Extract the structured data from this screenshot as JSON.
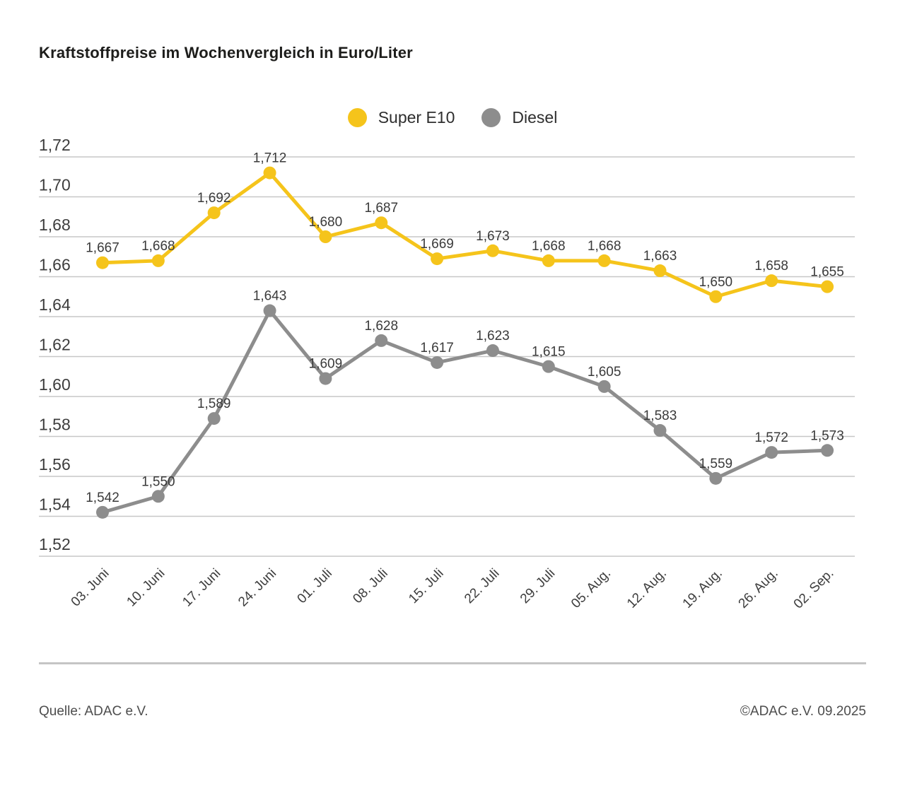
{
  "title": "Kraftstoffpreise im Wochenvergleich in Euro/Liter",
  "legend": [
    {
      "label": "Super E10",
      "color": "#F5C41B"
    },
    {
      "label": "Diesel",
      "color": "#8D8D8D"
    }
  ],
  "footer": {
    "source": "Quelle: ADAC e.V.",
    "copyright": "©ADAC e.V. 09.2025"
  },
  "chart_data": {
    "type": "line",
    "title": "Kraftstoffpreise im Wochenvergleich in Euro/Liter",
    "xlabel": "",
    "ylabel": "Euro/Liter",
    "categories": [
      "03. Juni",
      "10. Juni",
      "17. Juni",
      "24. Juni",
      "01. Juli",
      "08. Juli",
      "15. Juli",
      "22. Juli",
      "29. Juli",
      "05. Aug.",
      "12. Aug.",
      "19. Aug.",
      "26. Aug.",
      "02. Sep."
    ],
    "series": [
      {
        "name": "Super E10",
        "color": "#F5C41B",
        "values": [
          1.667,
          1.668,
          1.692,
          1.712,
          1.68,
          1.687,
          1.669,
          1.673,
          1.668,
          1.668,
          1.663,
          1.65,
          1.658,
          1.655
        ]
      },
      {
        "name": "Diesel",
        "color": "#8D8D8D",
        "values": [
          1.542,
          1.55,
          1.589,
          1.643,
          1.609,
          1.628,
          1.617,
          1.623,
          1.615,
          1.605,
          1.583,
          1.559,
          1.572,
          1.573
        ]
      }
    ],
    "ylim": [
      1.52,
      1.72
    ],
    "yticks": [
      1.72,
      1.7,
      1.68,
      1.66,
      1.64,
      1.62,
      1.6,
      1.58,
      1.56,
      1.54,
      1.52
    ],
    "ytick_step": 0.02,
    "decimal_separator": ",",
    "grid": true,
    "legend_position": "top-center",
    "point_labels": true
  },
  "style": {
    "grid_color": "#c7c7c7",
    "tick_text_color": "#3d3d3d",
    "data_label_color": "#3a3a3a"
  }
}
